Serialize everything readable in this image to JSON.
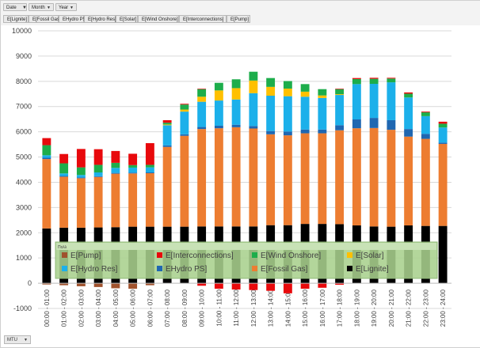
{
  "filters": [
    {
      "label": "Date",
      "name": "date"
    },
    {
      "label": "Month",
      "name": "month"
    },
    {
      "label": "Year",
      "name": "year"
    }
  ],
  "series_buttons": [
    "E[Lignite]",
    "E[Fossil Gas]",
    "EHydro PS]",
    "E[Hydro Res]",
    "E[Solar]",
    "E[Wind Onshore]",
    "E[Interconnections]",
    "E[Pump]"
  ],
  "axis_button": "MTU",
  "colors": {
    "lignite": "#000000",
    "gas": "#ED7D31",
    "hydro_ps": "#1F67B1",
    "hydro_res": "#1CB0EA",
    "solar": "#FFC000",
    "wind": "#1DAD4B",
    "interconnections": "#E8090C",
    "pump": "#A0522D"
  },
  "chart_data": {
    "type": "bar",
    "stacked": true,
    "ylim": [
      -1000,
      10000
    ],
    "yticks": [
      -1000,
      0,
      1000,
      2000,
      3000,
      4000,
      5000,
      6000,
      7000,
      8000,
      9000,
      10000
    ],
    "categories": [
      "00:00 - 01:00",
      "01:00 - 02:00",
      "02:00 - 03:00",
      "03:00 - 04:00",
      "04:00 - 05:00",
      "05:00 - 06:00",
      "06:00 - 07:00",
      "07:00 - 08:00",
      "08:00 - 09:00",
      "09:00 - 10:00",
      "10:00 - 11:00",
      "11:00 - 12:00",
      "12:00 - 13:00",
      "13:00 - 14:00",
      "14:00 - 15:00",
      "15:00 - 16:00",
      "16:00 - 17:00",
      "17:00 - 18:00",
      "18:00 - 19:00",
      "19:00 - 20:00",
      "20:00 - 21:00",
      "21:00 - 22:00",
      "22:00 - 23:00",
      "23:00 - 24:00"
    ],
    "legend_title": "Πολλ",
    "legend_position": "bottom-center",
    "series": [
      {
        "name": "E[Lignite]",
        "key": "lignite",
        "values": [
          2170,
          2200,
          2200,
          2210,
          2220,
          2240,
          2240,
          2240,
          2240,
          2250,
          2250,
          2250,
          2250,
          2300,
          2300,
          2350,
          2350,
          2340,
          2290,
          2250,
          2240,
          2290,
          2270,
          2270
        ]
      },
      {
        "name": "E[Fossil Gas]",
        "key": "gas",
        "values": [
          2750,
          2020,
          1960,
          2000,
          2120,
          2110,
          2120,
          3160,
          3600,
          3860,
          3890,
          3930,
          3880,
          3600,
          3560,
          3590,
          3590,
          3720,
          3850,
          3900,
          3840,
          3520,
          3450,
          3250
        ]
      },
      {
        "name": "EHydro PS]",
        "key": "hydro_ps",
        "values": [
          50,
          30,
          30,
          30,
          30,
          30,
          30,
          60,
          60,
          80,
          100,
          100,
          100,
          130,
          150,
          150,
          150,
          200,
          350,
          400,
          380,
          300,
          200,
          50
        ]
      },
      {
        "name": "E[Hydro Res]",
        "key": "hydro_res",
        "values": [
          100,
          100,
          100,
          150,
          200,
          200,
          200,
          800,
          900,
          1000,
          1000,
          1000,
          1300,
          1400,
          1400,
          1300,
          1250,
          1200,
          1400,
          1350,
          1500,
          1250,
          700,
          600
        ]
      },
      {
        "name": "E[Solar]",
        "key": "solar",
        "values": [
          0,
          0,
          0,
          0,
          0,
          0,
          0,
          30,
          80,
          200,
          400,
          450,
          500,
          350,
          300,
          200,
          100,
          30,
          0,
          0,
          0,
          0,
          0,
          0
        ]
      },
      {
        "name": "E[Wind Onshore]",
        "key": "wind",
        "values": [
          400,
          400,
          300,
          300,
          200,
          100,
          100,
          70,
          200,
          300,
          300,
          350,
          350,
          350,
          300,
          300,
          250,
          200,
          200,
          200,
          150,
          150,
          150,
          150
        ]
      },
      {
        "name": "E[Interconnections]",
        "key": "interconnections",
        "values": [
          280,
          370,
          730,
          620,
          470,
          450,
          860,
          100,
          30,
          20,
          0,
          0,
          0,
          0,
          0,
          0,
          0,
          20,
          40,
          40,
          30,
          50,
          30,
          80
        ]
      },
      {
        "name": "E[Pump]",
        "key": "pump",
        "values": [
          -50,
          -80,
          -120,
          -150,
          -200,
          -220,
          -80,
          0,
          0,
          0,
          0,
          0,
          0,
          0,
          0,
          0,
          0,
          0,
          0,
          0,
          0,
          0,
          0,
          0
        ]
      },
      {
        "name": "E[Interconnections]",
        "key": "interconnections_neg",
        "values": [
          0,
          0,
          0,
          0,
          0,
          0,
          0,
          0,
          0,
          -100,
          -220,
          -250,
          -270,
          -300,
          -400,
          -220,
          -180,
          -60,
          0,
          0,
          0,
          0,
          0,
          0
        ]
      }
    ],
    "legend": [
      {
        "label": "E[Pump]",
        "key": "pump"
      },
      {
        "label": "E[Interconnections]",
        "key": "interconnections"
      },
      {
        "label": "E[Wind Onshore]",
        "key": "wind"
      },
      {
        "label": "E[Solar]",
        "key": "solar"
      },
      {
        "label": "E[Hydro Res]",
        "key": "hydro_res"
      },
      {
        "label": "EHydro PS]",
        "key": "hydro_ps"
      },
      {
        "label": "E[Fossil Gas]",
        "key": "gas"
      },
      {
        "label": "E[Lignite]",
        "key": "lignite"
      }
    ]
  }
}
